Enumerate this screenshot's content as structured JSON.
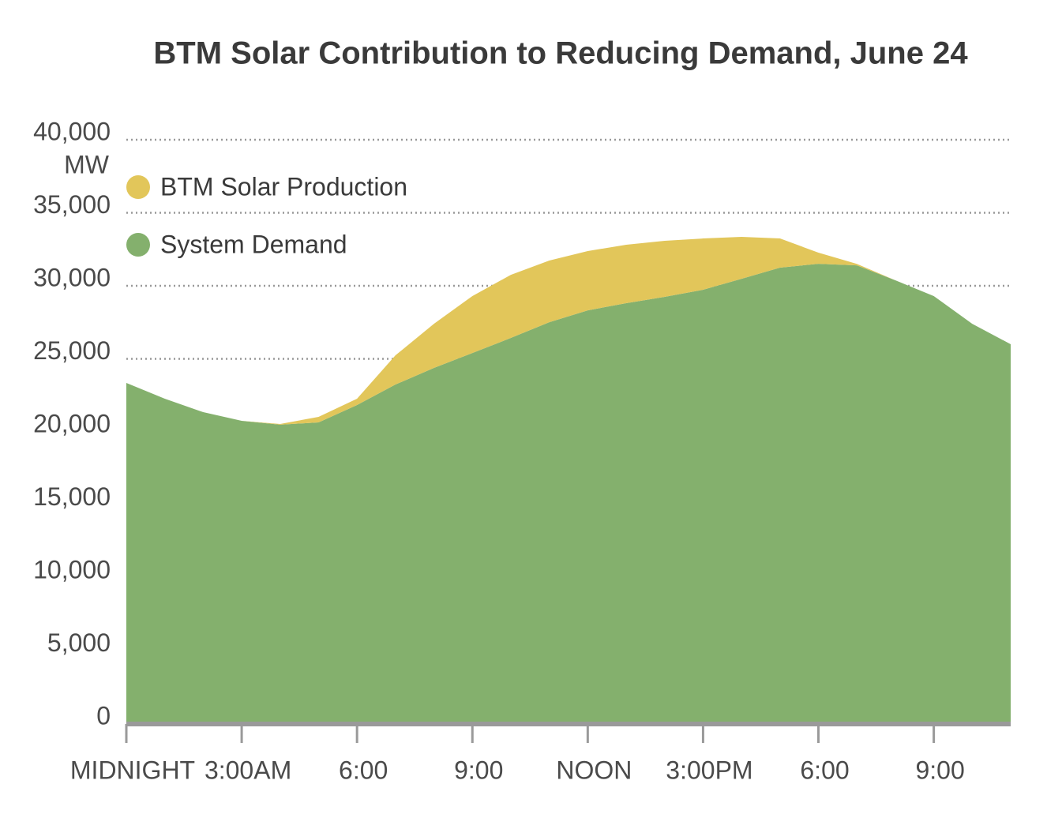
{
  "chart_data": {
    "type": "stacked_area",
    "title": "BTM Solar Contribution to Reducing Demand, June 24",
    "y_unit": "MW",
    "x": [
      0,
      1,
      2,
      3,
      4,
      5,
      6,
      7,
      8,
      9,
      10,
      11,
      12,
      13,
      14,
      15,
      16,
      17,
      18,
      19,
      20,
      21,
      22,
      23
    ],
    "xlim": [
      0,
      23
    ],
    "xticks": [
      {
        "value": 0,
        "label": "MIDNIGHT"
      },
      {
        "value": 3,
        "label": "3:00AM"
      },
      {
        "value": 6,
        "label": "6:00"
      },
      {
        "value": 9,
        "label": "9:00"
      },
      {
        "value": 12,
        "label": "NOON"
      },
      {
        "value": 15,
        "label": "3:00PM"
      },
      {
        "value": 18,
        "label": "6:00"
      },
      {
        "value": 21,
        "label": "9:00"
      }
    ],
    "ylim": [
      0,
      40000
    ],
    "yticks": [
      0,
      {
        "value": 5000,
        "label": "5,000"
      },
      {
        "value": 10000,
        "label": "10,000"
      },
      {
        "value": 15000,
        "label": "15,000"
      },
      {
        "value": 20000,
        "label": "20,000"
      },
      {
        "value": 25000,
        "label": "25,000"
      },
      {
        "value": 30000,
        "label": "30,000"
      },
      {
        "value": 35000,
        "label": "35,000"
      },
      {
        "value": 40000,
        "label": "40,000"
      }
    ],
    "grid": true,
    "legend": "upper left",
    "series": [
      {
        "name": "System Demand",
        "color": "#84b06d",
        "values": [
          23350,
          22270,
          21350,
          20760,
          20490,
          20650,
          21840,
          23240,
          24380,
          25400,
          26430,
          27510,
          28320,
          28810,
          29240,
          29730,
          30480,
          31240,
          31510,
          31400,
          30380,
          29300,
          27400,
          26000
        ]
      },
      {
        "name": "BTM Solar Production",
        "color": "#e2c65a",
        "values": [
          0,
          0,
          0,
          0,
          50,
          380,
          430,
          2000,
          3020,
          3900,
          4320,
          4220,
          4060,
          4000,
          3840,
          3510,
          2870,
          2000,
          760,
          100,
          0,
          0,
          0,
          0
        ]
      }
    ]
  }
}
